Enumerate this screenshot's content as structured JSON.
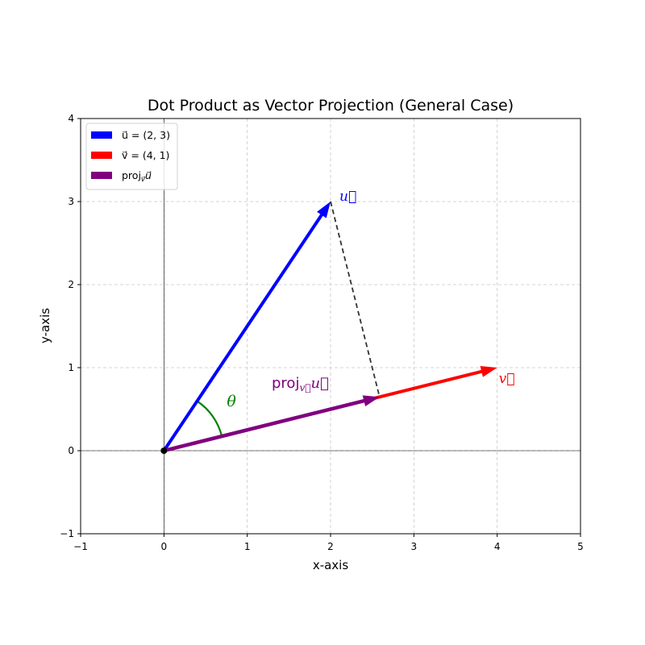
{
  "chart_data": {
    "type": "line",
    "title": "Dot Product as Vector Projection (General Case)",
    "xlabel": "x-axis",
    "ylabel": "y-axis",
    "xlim": [
      -1,
      5
    ],
    "ylim": [
      -1,
      4
    ],
    "xticks": [
      -1,
      0,
      1,
      2,
      3,
      4,
      5
    ],
    "yticks": [
      -1,
      0,
      1,
      2,
      3,
      4
    ],
    "xtick_labels": [
      "−1",
      "0",
      "1",
      "2",
      "3",
      "4",
      "5"
    ],
    "ytick_labels": [
      "−1",
      "0",
      "1",
      "2",
      "3",
      "4"
    ],
    "grid": true,
    "legend_position": "top-left",
    "origin": [
      0,
      0
    ],
    "vectors": [
      {
        "id": "u",
        "from": [
          0,
          0
        ],
        "to": [
          2,
          3
        ],
        "color": "#0000ff",
        "legend": "u⃗ = (2, 3)",
        "label": "u⃗"
      },
      {
        "id": "v",
        "from": [
          0,
          0
        ],
        "to": [
          4,
          1
        ],
        "color": "#ff0000",
        "legend": "v⃗ = (4, 1)",
        "label": "v⃗"
      },
      {
        "id": "proj",
        "from": [
          0,
          0
        ],
        "to": [
          2.5882,
          0.6471
        ],
        "color": "#800080",
        "legend": "proj",
        "label": "proj"
      }
    ],
    "projection_line": {
      "from": [
        2,
        3
      ],
      "to": [
        2.5882,
        0.6471
      ],
      "style": "dashed",
      "color": "#333333"
    },
    "angle": {
      "label": "θ",
      "color": "#008000",
      "from_deg": 14.04,
      "to_deg": 56.31
    }
  }
}
